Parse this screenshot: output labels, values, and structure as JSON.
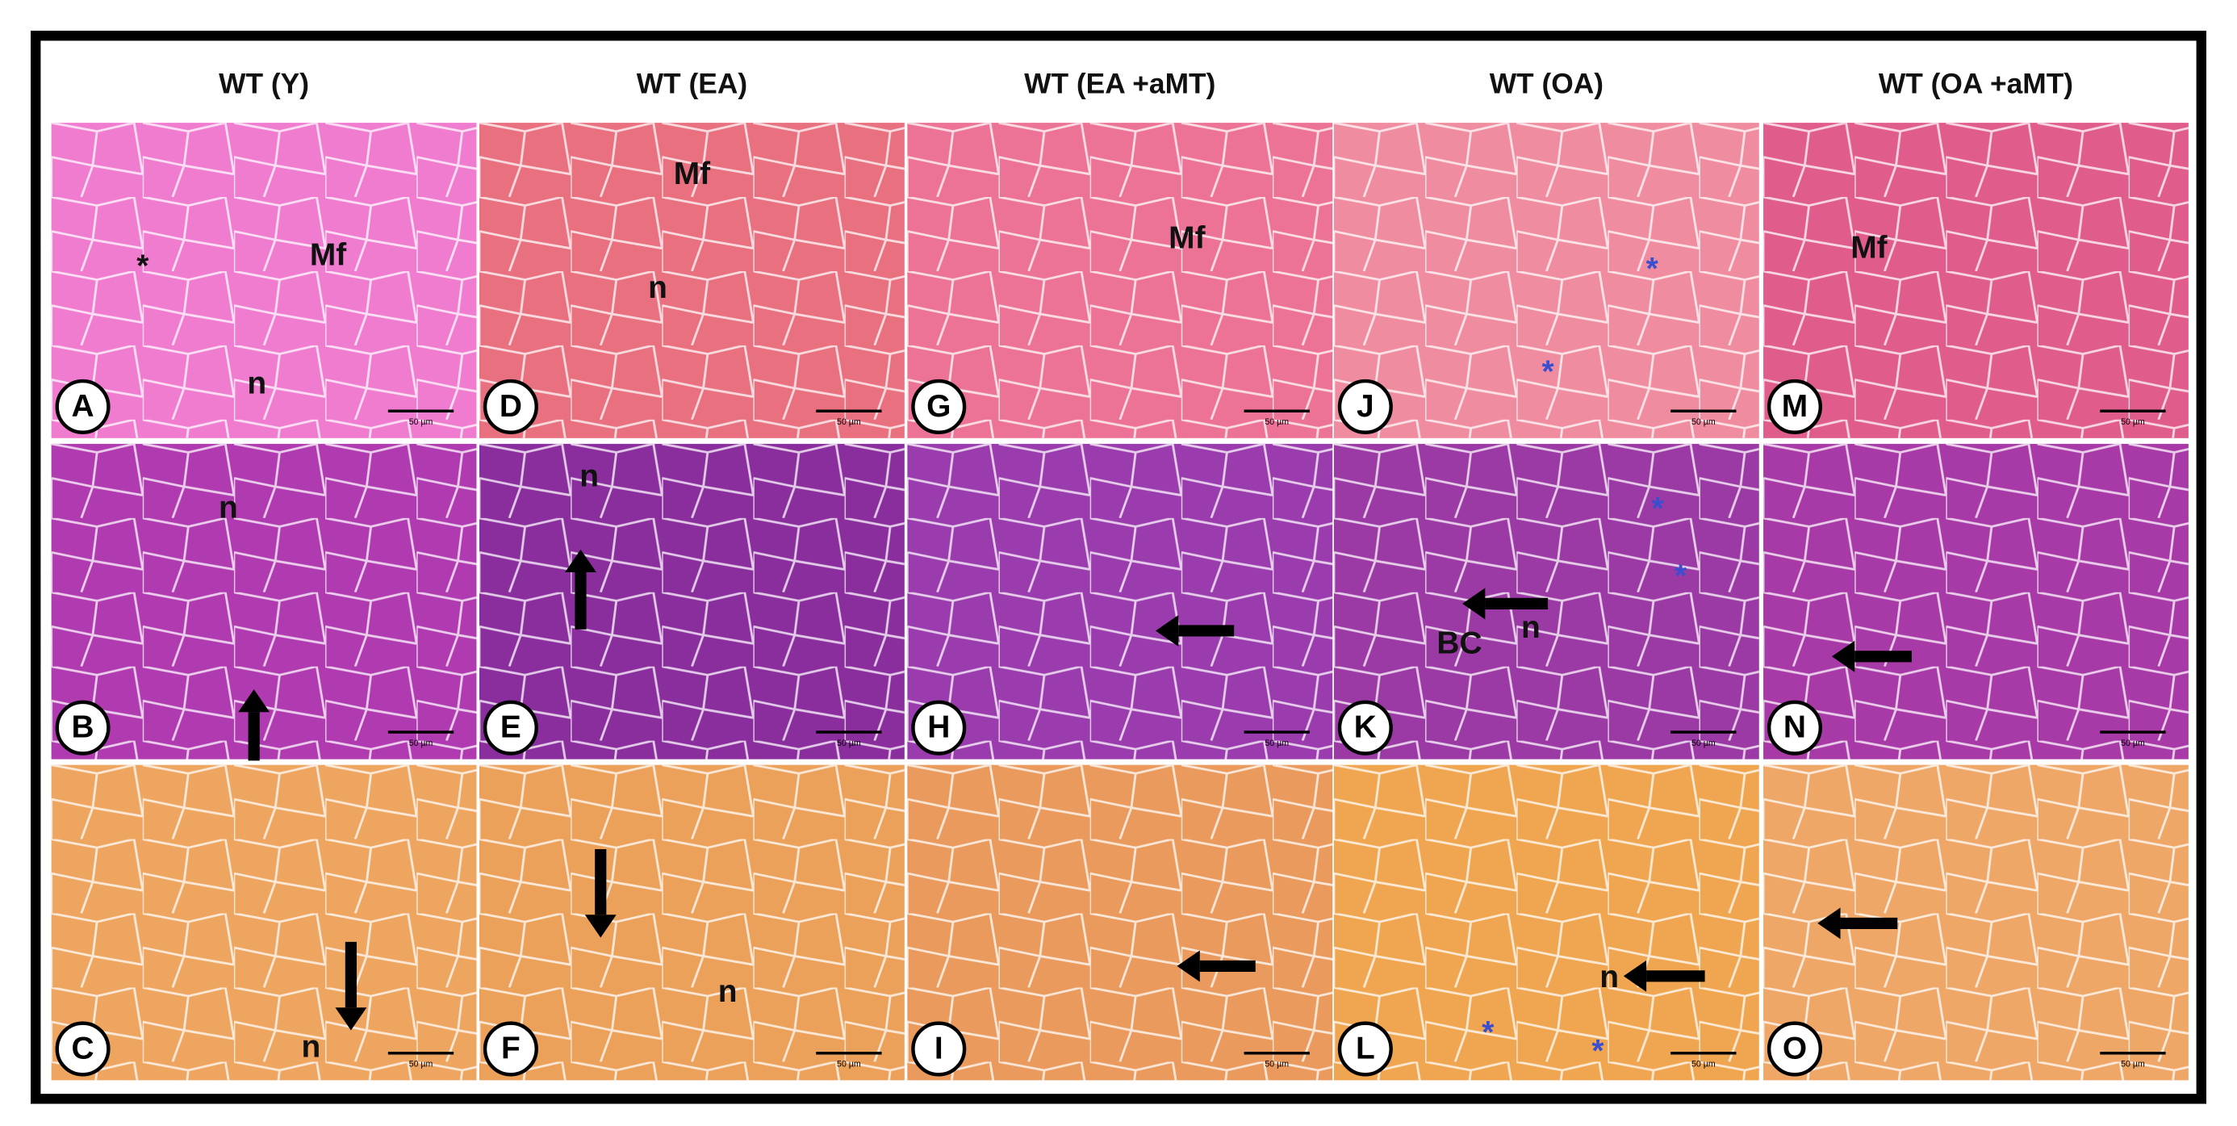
{
  "column_headers": [
    "WT (Y)",
    "WT (EA)",
    "WT (EA +aMT)",
    "WT (OA)",
    "WT (OA +aMT)"
  ],
  "panels": [
    {
      "letter": "A",
      "labels": [
        "*",
        "Mf",
        "n"
      ]
    },
    {
      "letter": "B",
      "labels": [
        "n"
      ]
    },
    {
      "letter": "C",
      "labels": [
        "n"
      ]
    },
    {
      "letter": "D",
      "labels": [
        "Mf",
        "n"
      ]
    },
    {
      "letter": "E",
      "labels": [
        "n"
      ]
    },
    {
      "letter": "F",
      "labels": [
        "n"
      ]
    },
    {
      "letter": "G",
      "labels": [
        "Mf"
      ]
    },
    {
      "letter": "H",
      "labels": []
    },
    {
      "letter": "I",
      "labels": []
    },
    {
      "letter": "J",
      "labels": [
        "*",
        "*"
      ]
    },
    {
      "letter": "K",
      "labels": [
        "BC",
        "n",
        "*",
        "*"
      ]
    },
    {
      "letter": "L",
      "labels": [
        "n",
        "*",
        "*"
      ]
    },
    {
      "letter": "M",
      "labels": [
        "Mf"
      ]
    },
    {
      "letter": "N",
      "labels": []
    },
    {
      "letter": "O",
      "labels": []
    }
  ],
  "scale_bar": "50 µm"
}
